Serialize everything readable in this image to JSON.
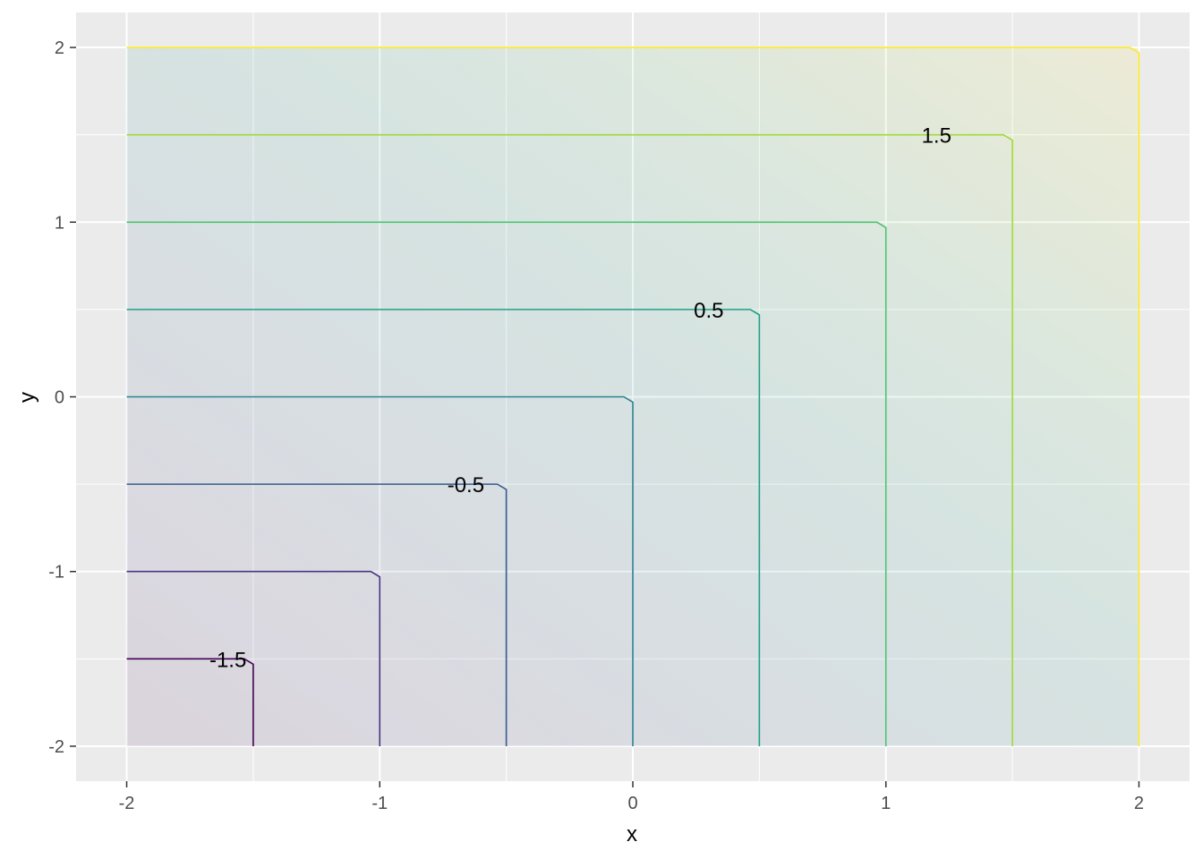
{
  "chart_data": {
    "type": "contour",
    "xlabel": "x",
    "ylabel": "y",
    "xlim": [
      -2.2,
      2.2
    ],
    "ylim": [
      -2.2,
      2.2
    ],
    "x_ticks": [
      -2,
      -1,
      0,
      1,
      2
    ],
    "y_ticks": [
      -2,
      -1,
      0,
      1,
      2
    ],
    "x_tick_labels": [
      "-2",
      "-1",
      "0",
      "1",
      "2"
    ],
    "y_tick_labels": [
      "-2",
      "-1",
      "0",
      "1",
      "2"
    ],
    "grid": true,
    "surface": "z = max(x, y)",
    "domain": {
      "x": [
        -2,
        2
      ],
      "y": [
        -2,
        2
      ]
    },
    "fill_opacity": 0.1,
    "levels": [
      {
        "level": -1.5,
        "color": "#440154"
      },
      {
        "level": -1.0,
        "color": "#46337e"
      },
      {
        "level": -0.5,
        "color": "#365c8d"
      },
      {
        "level": 0.0,
        "color": "#277f8e"
      },
      {
        "level": 0.5,
        "color": "#1fa187"
      },
      {
        "level": 1.0,
        "color": "#4ac16d"
      },
      {
        "level": 1.5,
        "color": "#a0da39"
      },
      {
        "level": 2.0,
        "color": "#fde725"
      }
    ],
    "labels": [
      {
        "text": "-1.5",
        "x": -1.6,
        "y": -1.5
      },
      {
        "text": "-0.5",
        "x": -0.66,
        "y": -0.5
      },
      {
        "text": "0.5",
        "x": 0.3,
        "y": 0.5
      },
      {
        "text": "1.5",
        "x": 1.2,
        "y": 1.5
      }
    ]
  }
}
